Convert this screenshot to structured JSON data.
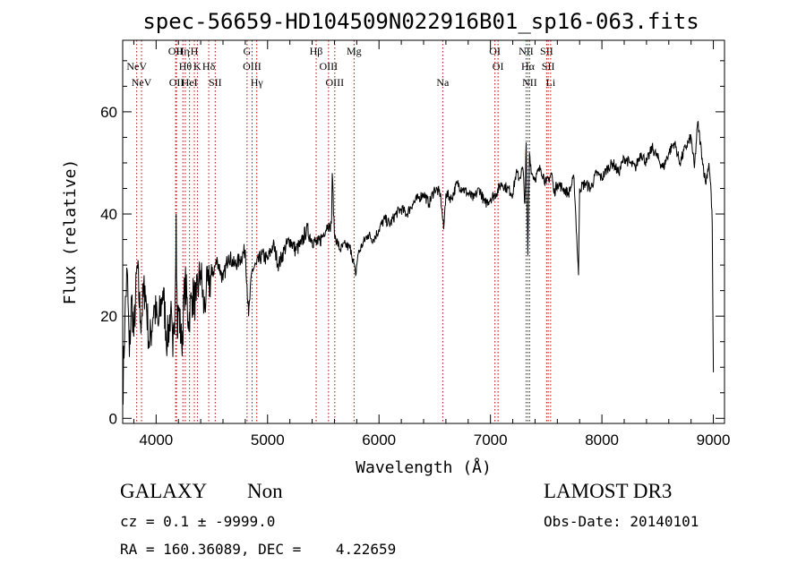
{
  "chart_data": {
    "type": "line",
    "title": "spec-56659-HD104509N022916B01_sp16-063.fits",
    "xlabel": "Wavelength (Å)",
    "ylabel": "Flux (relative)",
    "xlim": [
      3700,
      9100
    ],
    "ylim": [
      -1,
      74
    ],
    "x_ticks": [
      4000,
      5000,
      6000,
      7000,
      8000,
      9000
    ],
    "y_ticks": [
      0,
      20,
      40,
      60
    ],
    "series": [
      {
        "name": "spectrum",
        "x": [
          3700,
          3720,
          3740,
          3760,
          3780,
          3800,
          3830,
          3860,
          3900,
          3940,
          3980,
          4020,
          4060,
          4100,
          4130,
          4150,
          4170,
          4180,
          4190,
          4200,
          4230,
          4260,
          4290,
          4320,
          4360,
          4400,
          4430,
          4450,
          4470,
          4500,
          4550,
          4600,
          4650,
          4700,
          4750,
          4800,
          4830,
          4860,
          4900,
          4950,
          5000,
          5050,
          5100,
          5150,
          5200,
          5250,
          5300,
          5350,
          5400,
          5450,
          5500,
          5540,
          5560,
          5575,
          5580,
          5600,
          5650,
          5700,
          5750,
          5790,
          5810,
          5850,
          5900,
          5950,
          6000,
          6050,
          6100,
          6150,
          6200,
          6250,
          6300,
          6350,
          6400,
          6450,
          6500,
          6550,
          6580,
          6600,
          6650,
          6700,
          6750,
          6800,
          6850,
          6900,
          6950,
          7000,
          7050,
          7100,
          7150,
          7200,
          7230,
          7260,
          7290,
          7310,
          7320,
          7335,
          7350,
          7370,
          7400,
          7450,
          7500,
          7550,
          7570,
          7600,
          7650,
          7700,
          7750,
          7790,
          7800,
          7850,
          7900,
          7950,
          8000,
          8050,
          8100,
          8150,
          8200,
          8250,
          8300,
          8350,
          8400,
          8450,
          8500,
          8550,
          8600,
          8650,
          8700,
          8750,
          8800,
          8830,
          8860,
          8900,
          8930,
          8960,
          8980,
          8990,
          9000
        ],
        "values": [
          4,
          20,
          29,
          12,
          24,
          16,
          30,
          19,
          26,
          14,
          22,
          18,
          25,
          15,
          21,
          12,
          23,
          40,
          16,
          22,
          14,
          27,
          19,
          24,
          23,
          29,
          21,
          25,
          26,
          28,
          31,
          27,
          32,
          30,
          31,
          33,
          20,
          29,
          30,
          32,
          31,
          34,
          30,
          33,
          35,
          33,
          34,
          37,
          35,
          34,
          36,
          38,
          37,
          39,
          48,
          36,
          33,
          34,
          33,
          28,
          32,
          34,
          36,
          35,
          37,
          39,
          38,
          40,
          41,
          40,
          42,
          43,
          44,
          42,
          45,
          44,
          37,
          44,
          43,
          46,
          45,
          44,
          43,
          45,
          42,
          43,
          44,
          46,
          45,
          44,
          48,
          47,
          49,
          42,
          54,
          32,
          52,
          48,
          47,
          49,
          46,
          48,
          44,
          46,
          45,
          44,
          47,
          28,
          45,
          46,
          45,
          48,
          47,
          49,
          50,
          48,
          51,
          50,
          49,
          52,
          50,
          53,
          51,
          49,
          52,
          54,
          50,
          53,
          55,
          49,
          58,
          51,
          46,
          50,
          44,
          38,
          9
        ]
      }
    ],
    "emission_lines": [
      {
        "x": 3826,
        "label": "NeV",
        "row": 2
      },
      {
        "x": 3869,
        "label": "NeV",
        "row": 3
      },
      {
        "x": 4175,
        "label": "OII",
        "row": 1
      },
      {
        "x": 4183,
        "label": "OII",
        "row": 3
      },
      {
        "x": 4240,
        "label": "Hη",
        "row": 1
      },
      {
        "x": 4262,
        "label": "Hθ",
        "row": 2
      },
      {
        "x": 4300,
        "label": "HeI",
        "row": 3
      },
      {
        "x": 4343,
        "label": "H",
        "row": 1
      },
      {
        "x": 4370,
        "label": "K",
        "row": 2
      },
      {
        "x": 4472,
        "label": "Hδ",
        "row": 2
      },
      {
        "x": 4530,
        "label": "SII",
        "row": 3
      },
      {
        "x": 4816,
        "label": "G",
        "row": 1
      },
      {
        "x": 4861,
        "label": "OIII",
        "row": 2
      },
      {
        "x": 4903,
        "label": "Hγ",
        "row": 3
      },
      {
        "x": 5436,
        "label": "Hβ",
        "row": 1
      },
      {
        "x": 5547,
        "label": "OIII",
        "row": 2
      },
      {
        "x": 5603,
        "label": "OIII",
        "row": 3
      },
      {
        "x": 5776,
        "label": "Mg",
        "row": 1
      },
      {
        "x": 6572,
        "label": "Na",
        "row": 3
      },
      {
        "x": 7040,
        "label": "OI",
        "row": 1
      },
      {
        "x": 7068,
        "label": "OI",
        "row": 2
      },
      {
        "x": 7320,
        "label": "NII",
        "row": 1
      },
      {
        "x": 7336,
        "label": "Hα",
        "row": 2
      },
      {
        "x": 7352,
        "label": "NII",
        "row": 3
      },
      {
        "x": 7504,
        "label": "SII",
        "row": 1
      },
      {
        "x": 7518,
        "label": "SII",
        "row": 2
      },
      {
        "x": 7540,
        "label": "Li",
        "row": 3
      }
    ]
  },
  "info": {
    "class": "GALAXY",
    "subclass": "Non",
    "survey": "LAMOST DR3",
    "cz": "cz = 0.1 ± -9999.0",
    "obs_date": "Obs-Date: 20140101",
    "radec": "RA = 160.36089, DEC =    4.22659"
  }
}
